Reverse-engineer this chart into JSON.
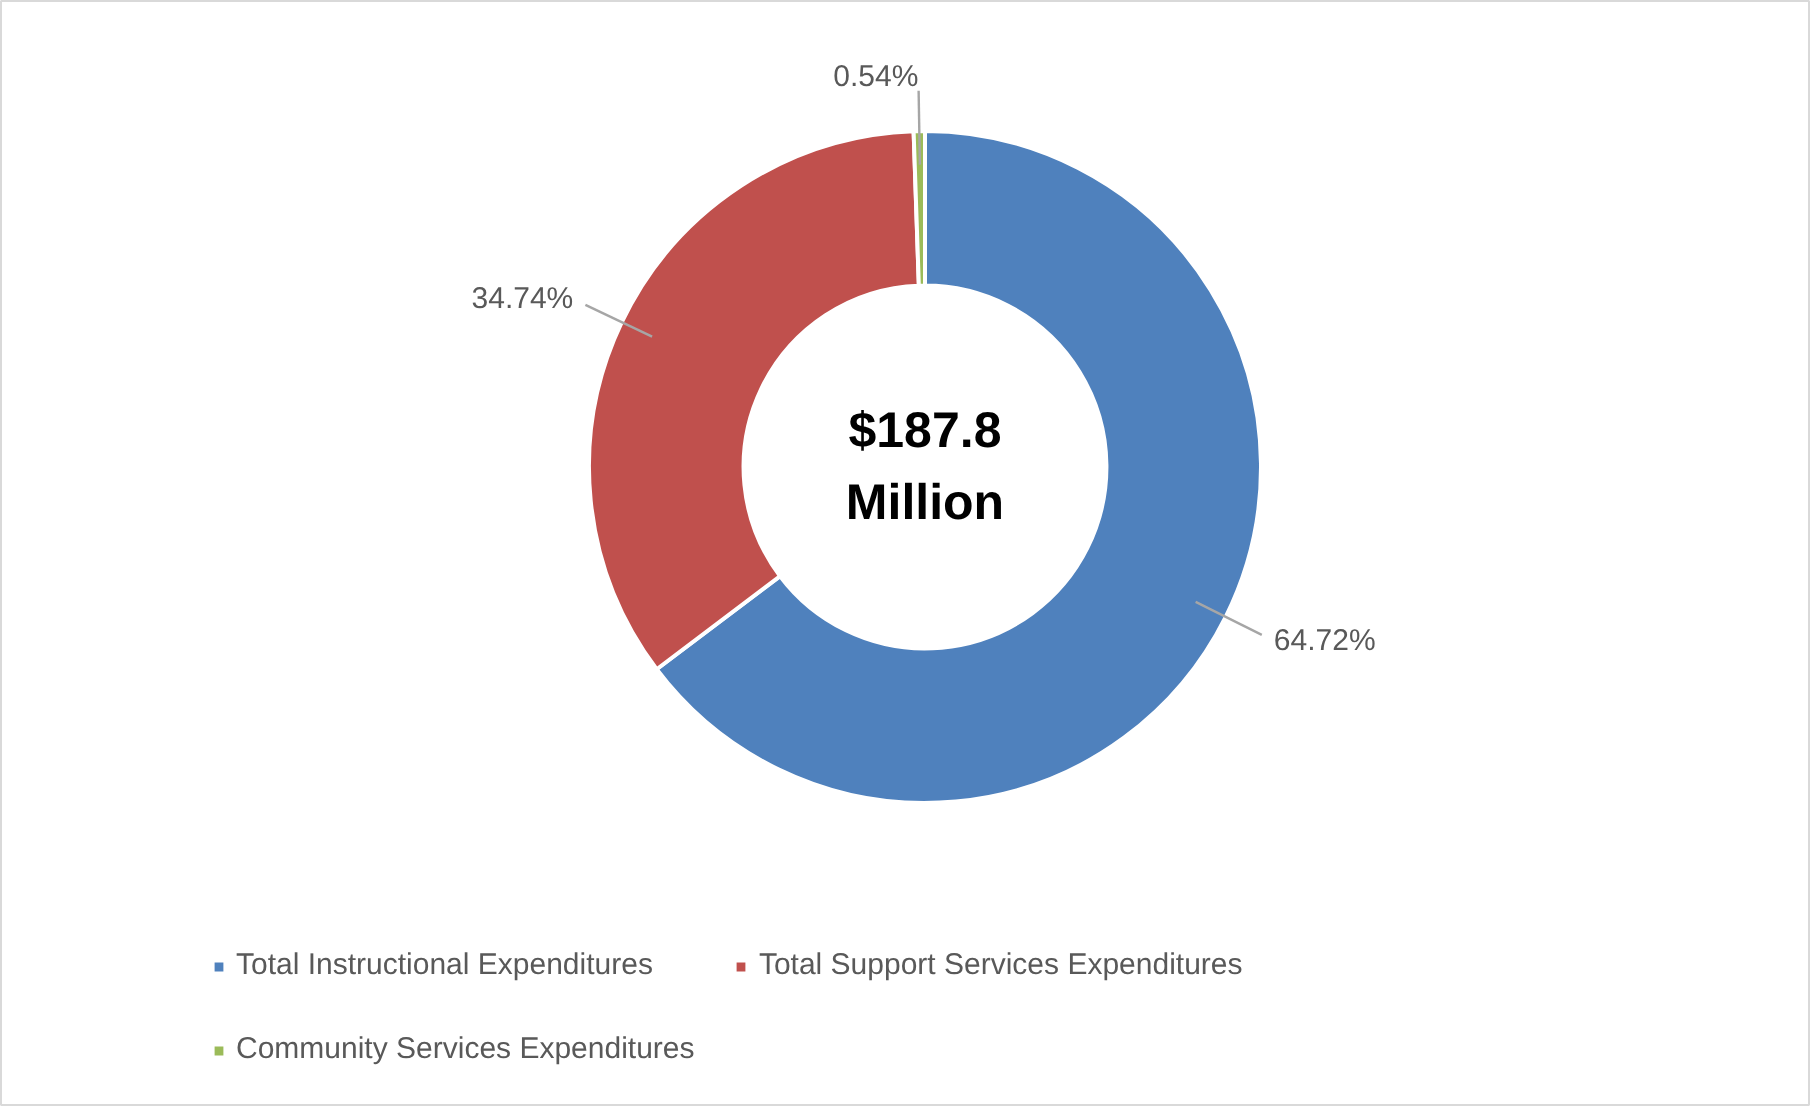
{
  "chart_data": {
    "type": "donut",
    "categories": [
      "Total Instructional Expenditures",
      "Total Support Services Expenditures",
      "Community Services Expenditures"
    ],
    "values": [
      64.72,
      34.74,
      0.54
    ],
    "colors": [
      "#4f81bd",
      "#c0504d",
      "#9bbb59"
    ],
    "value_labels": [
      "64.72%",
      "34.74%",
      "0.54%"
    ],
    "annotations": [
      "$187.8\nMillion"
    ],
    "legend": "bottom"
  }
}
